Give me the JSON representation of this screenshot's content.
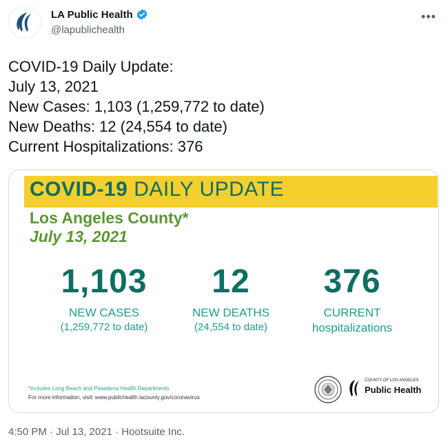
{
  "account": {
    "display_name": "LA Public Health",
    "handle": "@lapublichealth",
    "verified": true,
    "avatar_icon": "la-public-health-logo-icon",
    "more_icon": "more-options-icon"
  },
  "tweet": {
    "lines": [
      "COVID-19 Daily Update:",
      "July 13, 2021",
      "New Cases: 1,103 (1,259,772 to date)",
      "New Deaths: 12 (24,554 to date)",
      "Current Hospitalizations: 376"
    ]
  },
  "card": {
    "banner_bold": "COVID-19",
    "banner_rest": "DAILY UPDATE",
    "county": "Los Angeles County*",
    "date": "July 13, 2021",
    "stats": [
      {
        "number": "1,103",
        "label": "NEW CASES",
        "sub": "(1,259,772 to date)"
      },
      {
        "number": "12",
        "label": "NEW DEATHS",
        "sub": "(24,554 to date)"
      },
      {
        "number": "376",
        "label": "CURRENT",
        "sub": "hospitalizations"
      }
    ],
    "footnote": "*includes Long Beach and Pasadena Health Departments",
    "more_info": "For more information, visit: www.publichealth.lacounty.gov/coronavirus",
    "logo_county": "COUNTY OF LOS ANGELES",
    "logo_name": "Public Health",
    "colors": {
      "banner": "#f5cf2e",
      "teal": "#0e6e63",
      "green": "#5a9632"
    }
  },
  "meta": {
    "time": "4:50 PM",
    "date": "Jul 13, 2021",
    "source": "Hootsuite Inc.",
    "text": "4:50 PM · Jul 13, 2021 · Hootsuite Inc."
  }
}
